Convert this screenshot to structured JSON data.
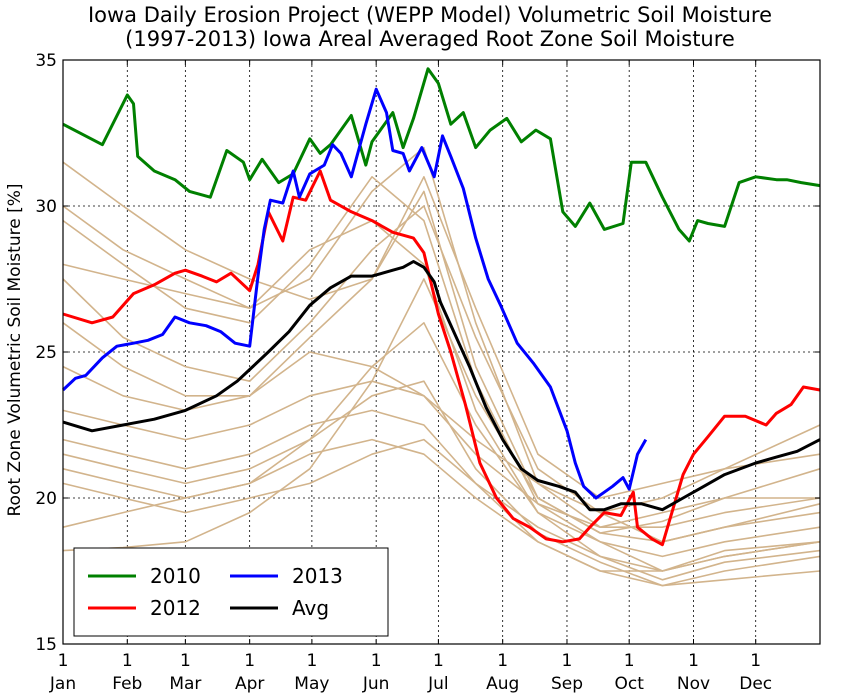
{
  "chart_data": {
    "type": "line",
    "title_lines": [
      "Iowa Daily Erosion Project (WEPP Model) Volumetric Soil Moisture",
      "(1997-2013) Iowa Areal Averaged Root Zone Soil Moisture"
    ],
    "ylabel": "Root Zone Volumetric Soil Moisture [%]",
    "xlabel": "",
    "ylim": [
      15,
      35
    ],
    "yticks": [
      15,
      20,
      25,
      30,
      35
    ],
    "xlim": [
      1,
      366
    ],
    "xtick_days": [
      1,
      32,
      60,
      91,
      121,
      152,
      182,
      213,
      244,
      274,
      305,
      335
    ],
    "xtick_top_labels": [
      "1",
      "1",
      "1",
      "1",
      "1",
      "1",
      "1",
      "1",
      "1",
      "1",
      "1",
      "1"
    ],
    "xtick_bottom_labels": [
      "Jan",
      "Feb",
      "Mar",
      "Apr",
      "May",
      "Jun",
      "Jul",
      "Aug",
      "Sep",
      "Oct",
      "Nov",
      "Dec"
    ],
    "grid": true,
    "legend_placement": "lower-left",
    "colors": {
      "2010": "#008000",
      "2012": "#ff0000",
      "2013": "#0000ff",
      "Avg": "#000000",
      "other_years": "#d2b48c"
    },
    "series": [
      {
        "name": "2010",
        "color": "#008000",
        "x": [
          1,
          20,
          32,
          35,
          37,
          45,
          55,
          62,
          72,
          80,
          88,
          91,
          97,
          105,
          112,
          120,
          125,
          130,
          140,
          147,
          150,
          160,
          165,
          170,
          177,
          182,
          188,
          194,
          200,
          207,
          215,
          222,
          229,
          236,
          242,
          248,
          255,
          262,
          271,
          275,
          282,
          290,
          298,
          303,
          307,
          312,
          320,
          327,
          335,
          345,
          350,
          357,
          366
        ],
        "y": [
          32.8,
          32.1,
          33.8,
          33.5,
          31.7,
          31.2,
          30.9,
          30.5,
          30.3,
          31.9,
          31.5,
          30.9,
          31.6,
          30.8,
          31.1,
          32.3,
          31.8,
          32.1,
          33.1,
          31.4,
          32.2,
          33.2,
          32.0,
          33.0,
          34.7,
          34.2,
          32.8,
          33.2,
          32.0,
          32.6,
          33.0,
          32.2,
          32.6,
          32.3,
          29.8,
          29.3,
          30.1,
          29.2,
          29.4,
          31.5,
          31.5,
          30.3,
          29.2,
          28.8,
          29.5,
          29.4,
          29.3,
          30.8,
          31.0,
          30.9,
          30.9,
          30.8,
          30.7
        ]
      },
      {
        "name": "2012",
        "color": "#ff0000",
        "x": [
          1,
          15,
          25,
          35,
          45,
          55,
          60,
          68,
          75,
          82,
          91,
          95,
          100,
          107,
          112,
          118,
          125,
          130,
          140,
          150,
          160,
          170,
          175,
          182,
          188,
          195,
          202,
          210,
          218,
          226,
          234,
          242,
          250,
          255,
          262,
          270,
          276,
          278,
          285,
          290,
          300,
          305,
          312,
          320,
          330,
          340,
          345,
          352,
          358,
          366
        ],
        "y": [
          26.3,
          26.0,
          26.2,
          27.0,
          27.3,
          27.7,
          27.8,
          27.6,
          27.4,
          27.7,
          27.1,
          28.0,
          29.8,
          28.8,
          30.3,
          30.2,
          31.2,
          30.2,
          29.8,
          29.5,
          29.1,
          28.9,
          28.4,
          26.3,
          25.0,
          23.2,
          21.2,
          20.0,
          19.3,
          19.0,
          18.6,
          18.5,
          18.6,
          19.0,
          19.5,
          19.4,
          20.2,
          19.0,
          18.6,
          18.4,
          20.8,
          21.5,
          22.1,
          22.8,
          22.8,
          22.5,
          22.9,
          23.2,
          23.8,
          23.7
        ]
      },
      {
        "name": "2013",
        "color": "#0000ff",
        "x": [
          1,
          7,
          12,
          20,
          27,
          35,
          42,
          49,
          55,
          62,
          70,
          77,
          84,
          91,
          95,
          98,
          101,
          107,
          112,
          115,
          120,
          127,
          131,
          135,
          140,
          147,
          152,
          157,
          160,
          165,
          168,
          174,
          180,
          184,
          188,
          194,
          200,
          206,
          212,
          220,
          228,
          236,
          244,
          248,
          252,
          258,
          262,
          266,
          271,
          274,
          278,
          282
        ],
        "y": [
          23.7,
          24.1,
          24.2,
          24.8,
          25.2,
          25.3,
          25.4,
          25.6,
          26.2,
          26.0,
          25.9,
          25.7,
          25.3,
          25.2,
          27.6,
          29.2,
          30.2,
          30.1,
          31.2,
          30.3,
          31.1,
          31.4,
          32.1,
          31.8,
          31.0,
          32.8,
          34.0,
          33.2,
          31.9,
          31.8,
          31.2,
          32.0,
          31.0,
          32.4,
          31.7,
          30.6,
          28.9,
          27.5,
          26.6,
          25.3,
          24.6,
          23.8,
          22.3,
          21.2,
          20.4,
          20.0,
          20.2,
          20.4,
          20.7,
          20.3,
          21.5,
          22.0
        ]
      },
      {
        "name": "Avg",
        "color": "#000000",
        "x": [
          1,
          15,
          30,
          45,
          60,
          75,
          85,
          91,
          100,
          110,
          120,
          130,
          140,
          150,
          160,
          165,
          170,
          175,
          180,
          183,
          190,
          197,
          205,
          213,
          222,
          230,
          240,
          248,
          255,
          262,
          270,
          280,
          290,
          300,
          310,
          320,
          335,
          345,
          355,
          366
        ],
        "y": [
          22.6,
          22.3,
          22.5,
          22.7,
          23.0,
          23.5,
          24.0,
          24.4,
          25.0,
          25.7,
          26.6,
          27.2,
          27.6,
          27.6,
          27.8,
          27.9,
          28.1,
          27.9,
          27.4,
          26.7,
          25.6,
          24.5,
          23.1,
          22.0,
          21.0,
          20.6,
          20.4,
          20.2,
          19.6,
          19.6,
          19.8,
          19.8,
          19.6,
          20.0,
          20.4,
          20.8,
          21.2,
          21.4,
          21.6,
          22.0
        ]
      }
    ],
    "other_years_label": "",
    "other_years": [
      {
        "x": [
          1,
          30,
          60,
          91,
          120,
          150,
          175,
          200,
          230,
          260,
          290,
          320,
          366
        ],
        "y": [
          31.5,
          30.0,
          28.5,
          27.5,
          26.8,
          27.5,
          30.5,
          24.5,
          20.0,
          18.8,
          19.2,
          20.0,
          21.0
        ]
      },
      {
        "x": [
          1,
          30,
          60,
          91,
          120,
          150,
          175,
          200,
          230,
          260,
          290,
          320,
          366
        ],
        "y": [
          30.0,
          28.5,
          27.5,
          26.5,
          27.5,
          30.5,
          32.0,
          26.0,
          20.5,
          19.0,
          19.5,
          20.0,
          20.0
        ]
      },
      {
        "x": [
          1,
          30,
          60,
          91,
          120,
          150,
          175,
          200,
          230,
          260,
          290,
          320,
          366
        ],
        "y": [
          29.5,
          28.0,
          26.5,
          26.0,
          28.0,
          31.0,
          29.5,
          24.0,
          19.8,
          18.5,
          17.5,
          18.2,
          18.5
        ]
      },
      {
        "x": [
          1,
          30,
          60,
          91,
          120,
          150,
          175,
          200,
          230,
          260,
          290,
          320,
          366
        ],
        "y": [
          28.0,
          27.5,
          27.0,
          26.5,
          28.5,
          29.5,
          28.0,
          23.0,
          19.5,
          18.0,
          17.2,
          17.8,
          18.2
        ]
      },
      {
        "x": [
          1,
          30,
          60,
          91,
          120,
          150,
          175,
          200,
          230,
          260,
          290,
          320,
          366
        ],
        "y": [
          27.5,
          25.5,
          24.5,
          24.0,
          26.0,
          28.5,
          30.0,
          25.5,
          21.0,
          19.5,
          18.5,
          19.0,
          19.5
        ]
      },
      {
        "x": [
          1,
          30,
          60,
          91,
          120,
          150,
          175,
          200,
          230,
          260,
          290,
          320,
          366
        ],
        "y": [
          26.0,
          24.5,
          23.5,
          23.5,
          25.5,
          27.5,
          31.0,
          26.5,
          21.5,
          20.0,
          20.5,
          21.0,
          21.5
        ]
      },
      {
        "x": [
          1,
          30,
          60,
          91,
          120,
          150,
          175,
          200,
          230,
          260,
          290,
          320,
          366
        ],
        "y": [
          24.5,
          23.5,
          23.0,
          23.5,
          25.0,
          24.5,
          23.5,
          22.0,
          20.5,
          19.5,
          20.0,
          21.0,
          22.5
        ]
      },
      {
        "x": [
          1,
          30,
          60,
          91,
          120,
          150,
          175,
          200,
          230,
          260,
          290,
          320,
          366
        ],
        "y": [
          23.0,
          22.5,
          22.0,
          22.5,
          23.5,
          24.0,
          23.5,
          21.5,
          19.8,
          19.0,
          19.0,
          19.5,
          20.0
        ]
      },
      {
        "x": [
          1,
          30,
          60,
          91,
          120,
          150,
          175,
          200,
          230,
          260,
          290,
          320,
          366
        ],
        "y": [
          22.0,
          21.5,
          21.0,
          21.5,
          22.5,
          23.0,
          22.5,
          20.5,
          18.5,
          17.5,
          17.5,
          18.0,
          18.5
        ]
      },
      {
        "x": [
          1,
          30,
          60,
          91,
          120,
          150,
          175,
          200,
          230,
          260,
          290,
          320,
          366
        ],
        "y": [
          21.5,
          21.0,
          20.5,
          21.0,
          22.0,
          23.5,
          24.0,
          21.0,
          18.8,
          17.8,
          17.0,
          17.5,
          18.0
        ]
      },
      {
        "x": [
          1,
          30,
          60,
          91,
          120,
          150,
          175,
          200,
          230,
          260,
          290,
          320,
          366
        ],
        "y": [
          21.0,
          20.5,
          20.0,
          20.5,
          21.5,
          22.0,
          21.5,
          20.0,
          18.5,
          17.5,
          17.0,
          17.2,
          17.5
        ]
      },
      {
        "x": [
          1,
          30,
          60,
          91,
          120,
          150,
          175,
          200,
          230,
          260,
          290,
          320,
          366
        ],
        "y": [
          20.5,
          20.0,
          19.5,
          20.0,
          20.5,
          21.5,
          22.0,
          20.5,
          19.0,
          18.0,
          17.5,
          18.0,
          18.5
        ]
      },
      {
        "x": [
          1,
          30,
          60,
          91,
          120,
          150,
          175,
          200,
          230,
          260,
          290,
          320,
          366
        ],
        "y": [
          19.0,
          19.5,
          20.0,
          20.5,
          22.0,
          24.5,
          26.0,
          22.5,
          19.5,
          18.5,
          18.0,
          18.5,
          19.0
        ]
      },
      {
        "x": [
          1,
          30,
          60,
          91,
          120,
          150,
          175,
          200,
          230,
          260,
          290,
          320,
          366
        ],
        "y": [
          18.2,
          18.3,
          18.5,
          19.5,
          21.0,
          24.0,
          27.5,
          23.5,
          20.0,
          18.8,
          18.5,
          19.0,
          19.8
        ]
      }
    ]
  },
  "legend": {
    "items": [
      {
        "label": "2010",
        "color": "#008000"
      },
      {
        "label": "2012",
        "color": "#ff0000"
      },
      {
        "label": "2013",
        "color": "#0000ff"
      },
      {
        "label": "Avg",
        "color": "#000000"
      }
    ]
  }
}
